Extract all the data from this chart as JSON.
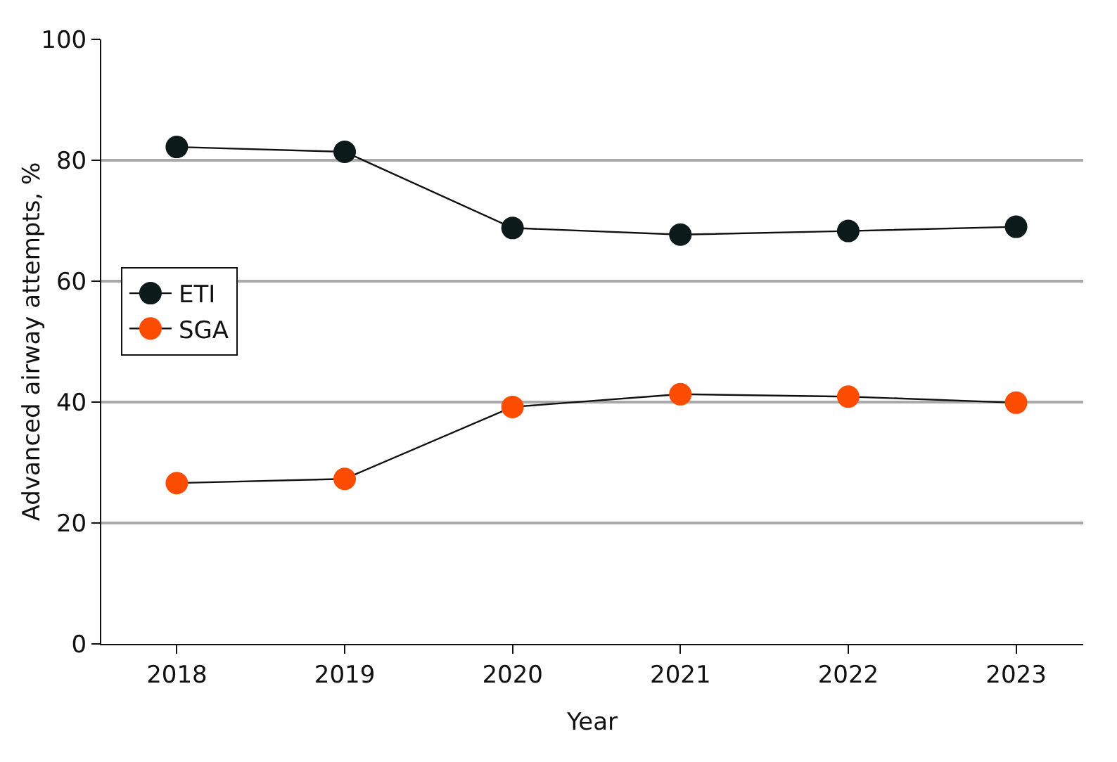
{
  "chart_data": {
    "type": "line",
    "xlabel": "Year",
    "ylabel": "Advanced airway attempts, %",
    "categories": [
      "2018",
      "2019",
      "2020",
      "2021",
      "2022",
      "2023"
    ],
    "series": [
      {
        "name": "ETI",
        "color": "#0d1a1a",
        "values": [
          82.2,
          81.4,
          68.8,
          67.7,
          68.3,
          69.0
        ]
      },
      {
        "name": "SGA",
        "color": "#fc4c02",
        "values": [
          26.6,
          27.3,
          39.2,
          41.3,
          40.9,
          39.9
        ]
      }
    ],
    "ylim": [
      0,
      100
    ],
    "yticks": [
      0,
      20,
      40,
      60,
      80,
      100
    ],
    "grid": "y",
    "legend": "left",
    "marker": "circle",
    "line_style": "solid"
  }
}
